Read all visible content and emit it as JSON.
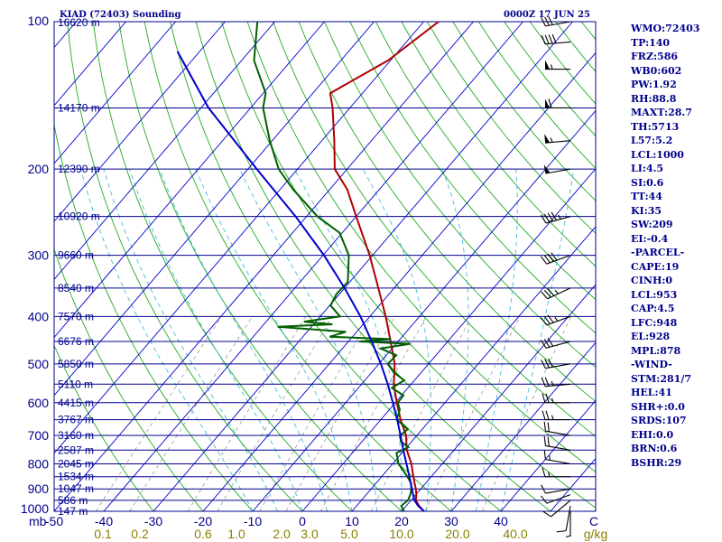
{
  "header": {
    "title": "KIAD (72403) Sounding",
    "valid_time": "0000Z 17 JUN 25"
  },
  "indices": [
    "WMO:72403",
    "TP:140",
    "FRZ:586",
    "WB0:602",
    "PW:1.92",
    "RH:88.8",
    "MAXT:28.7",
    "TH:5713",
    "L57:5.2",
    "LCL:1000",
    "LI:4.5",
    "SI:0.6",
    "TT:44",
    "KI:35",
    "SW:209",
    "EI:-0.4",
    "-PARCEL-",
    "CAPE:19",
    "CINH:0",
    "LCL:953",
    "CAP:4.5",
    "LFC:948",
    "EL:928",
    "MPL:878",
    "-WIND-",
    "STM:281/7",
    "HEL:41",
    "SHR+:0.0",
    "SRDS:107",
    "EHI:0.0",
    "BRN:0.6",
    "BSHR:29"
  ],
  "colors": {
    "isobar": "#00008b",
    "isotherm": "#0000cd",
    "dry_adiabat": "#22aa22",
    "moist_adiabat": "#44bbdd",
    "mixing_ratio": "#999999",
    "temperature": "#b00000",
    "dewpoint": "#006000",
    "parcel": "#0000cc",
    "wind_barb": "#000000",
    "mixing_ratio_label": "#8b8000"
  },
  "chart_data": {
    "type": "line",
    "title": "KIAD (72403) Sounding",
    "x_axis_unit": "C",
    "y_axis_unit": "mb",
    "xlim": [
      -50,
      50
    ],
    "ylim": [
      1000,
      100
    ],
    "y_scale": "log",
    "pressure_ticks": [
      "100",
      "200",
      "300",
      "400",
      "500",
      "600",
      "700",
      "800",
      "900",
      "1000"
    ],
    "temperature_ticks": [
      "-50",
      "-40",
      "-30",
      "-20",
      "-10",
      "0",
      "10",
      "20",
      "30",
      "40"
    ],
    "heights": [
      {
        "p": 100,
        "label": "16620 m"
      },
      {
        "p": 150,
        "label": "14170 m"
      },
      {
        "p": 200,
        "label": "12390 m"
      },
      {
        "p": 250,
        "label": "10920 m"
      },
      {
        "p": 300,
        "label": "9660 m"
      },
      {
        "p": 350,
        "label": "8540 m"
      },
      {
        "p": 400,
        "label": "7570 m"
      },
      {
        "p": 450,
        "label": "6676 m"
      },
      {
        "p": 500,
        "label": "5850 m"
      },
      {
        "p": 550,
        "label": "5110 m"
      },
      {
        "p": 600,
        "label": "4415 m"
      },
      {
        "p": 650,
        "label": "3767 m"
      },
      {
        "p": 700,
        "label": "3160 m"
      },
      {
        "p": 750,
        "label": "2587 m"
      },
      {
        "p": 800,
        "label": "2045 m"
      },
      {
        "p": 850,
        "label": "1534 m"
      },
      {
        "p": 900,
        "label": "1047 m"
      },
      {
        "p": 950,
        "label": "586 m"
      },
      {
        "p": 1000,
        "label": "147 m"
      }
    ],
    "mixing_ratio_labels": [
      "0.1",
      "0.2",
      "0.6",
      "1.0",
      "2.0",
      "3.0",
      "5.0",
      "10.0",
      "20.0",
      "40.0",
      "g/kg"
    ],
    "mixing_ratio_values": [
      0.1,
      0.2,
      0.6,
      1.0,
      2.0,
      3.0,
      5.0,
      10.0,
      20.0,
      40.0
    ],
    "series": [
      {
        "name": "Temperature",
        "points": [
          [
            1000,
            24.5
          ],
          [
            975,
            22.6
          ],
          [
            950,
            21.0
          ],
          [
            925,
            20.1
          ],
          [
            900,
            19.0
          ],
          [
            875,
            17.7
          ],
          [
            850,
            16.4
          ],
          [
            800,
            13.8
          ],
          [
            750,
            10.5
          ],
          [
            700,
            7.8
          ],
          [
            650,
            4.0
          ],
          [
            600,
            0.3
          ],
          [
            550,
            -3.5
          ],
          [
            500,
            -6.8
          ],
          [
            450,
            -11.5
          ],
          [
            400,
            -16.8
          ],
          [
            350,
            -23.2
          ],
          [
            300,
            -30.6
          ],
          [
            250,
            -40.0
          ],
          [
            220,
            -46.5
          ],
          [
            200,
            -52.5
          ],
          [
            175,
            -57.5
          ],
          [
            150,
            -63.5
          ],
          [
            140,
            -66.5
          ],
          [
            120,
            -60.5
          ],
          [
            100,
            -57.0
          ]
        ]
      },
      {
        "name": "Dewpoint",
        "points": [
          [
            1000,
            20.5
          ],
          [
            975,
            19.0
          ],
          [
            950,
            19.4
          ],
          [
            925,
            18.9
          ],
          [
            900,
            18.1
          ],
          [
            875,
            17.0
          ],
          [
            850,
            15.2
          ],
          [
            800,
            11.2
          ],
          [
            760,
            8.9
          ],
          [
            740,
            10.3
          ],
          [
            720,
            7.8
          ],
          [
            700,
            6.6
          ],
          [
            680,
            7.1
          ],
          [
            650,
            3.2
          ],
          [
            620,
            2.1
          ],
          [
            600,
            0.5
          ],
          [
            580,
            0.4
          ],
          [
            560,
            -3.2
          ],
          [
            540,
            -2.1
          ],
          [
            520,
            -5.6
          ],
          [
            500,
            -8.2
          ],
          [
            480,
            -8.0
          ],
          [
            465,
            -12.3
          ],
          [
            455,
            -7.2
          ],
          [
            450,
            -17.8
          ],
          [
            445,
            -11.8
          ],
          [
            440,
            -24.6
          ],
          [
            430,
            -22.2
          ],
          [
            420,
            -36.8
          ],
          [
            415,
            -26.2
          ],
          [
            410,
            -32.4
          ],
          [
            400,
            -26.0
          ],
          [
            380,
            -29.8
          ],
          [
            360,
            -30.6
          ],
          [
            340,
            -30.4
          ],
          [
            300,
            -34.8
          ],
          [
            270,
            -40.5
          ],
          [
            250,
            -47.8
          ],
          [
            220,
            -57.4
          ],
          [
            200,
            -63.8
          ],
          [
            175,
            -70.5
          ],
          [
            150,
            -77.5
          ],
          [
            140,
            -79.5
          ],
          [
            120,
            -87.5
          ],
          [
            100,
            -93.5
          ]
        ]
      },
      {
        "name": "Parcel",
        "points": [
          [
            1000,
            24.5
          ],
          [
            975,
            22.4
          ],
          [
            950,
            20.7
          ],
          [
            900,
            18.2
          ],
          [
            850,
            15.6
          ],
          [
            800,
            12.8
          ],
          [
            750,
            9.8
          ],
          [
            700,
            6.7
          ],
          [
            650,
            3.3
          ],
          [
            600,
            -0.5
          ],
          [
            550,
            -4.7
          ],
          [
            500,
            -9.6
          ],
          [
            450,
            -15.3
          ],
          [
            400,
            -21.9
          ],
          [
            350,
            -30.0
          ],
          [
            300,
            -39.8
          ],
          [
            250,
            -52.2
          ],
          [
            200,
            -68.2
          ],
          [
            150,
            -88.5
          ],
          [
            115,
            -104.5
          ]
        ]
      }
    ],
    "wind_barbs": [
      {
        "p": 1000,
        "dir": 180,
        "kt": 5
      },
      {
        "p": 975,
        "dir": 190,
        "kt": 10
      },
      {
        "p": 950,
        "dir": 230,
        "kt": 10
      },
      {
        "p": 925,
        "dir": 250,
        "kt": 10
      },
      {
        "p": 900,
        "dir": 260,
        "kt": 10
      },
      {
        "p": 850,
        "dir": 270,
        "kt": 15
      },
      {
        "p": 800,
        "dir": 280,
        "kt": 15
      },
      {
        "p": 750,
        "dir": 280,
        "kt": 20
      },
      {
        "p": 700,
        "dir": 280,
        "kt": 20
      },
      {
        "p": 650,
        "dir": 270,
        "kt": 25
      },
      {
        "p": 600,
        "dir": 270,
        "kt": 25
      },
      {
        "p": 550,
        "dir": 265,
        "kt": 25
      },
      {
        "p": 500,
        "dir": 260,
        "kt": 30
      },
      {
        "p": 450,
        "dir": 255,
        "kt": 30
      },
      {
        "p": 400,
        "dir": 250,
        "kt": 35
      },
      {
        "p": 350,
        "dir": 245,
        "kt": 35
      },
      {
        "p": 300,
        "dir": 250,
        "kt": 40
      },
      {
        "p": 250,
        "dir": 255,
        "kt": 45
      },
      {
        "p": 200,
        "dir": 260,
        "kt": 50
      },
      {
        "p": 175,
        "dir": 265,
        "kt": 55
      },
      {
        "p": 150,
        "dir": 270,
        "kt": 60
      },
      {
        "p": 125,
        "dir": 270,
        "kt": 55
      },
      {
        "p": 110,
        "dir": 265,
        "kt": 40
      },
      {
        "p": 100,
        "dir": 260,
        "kt": 30
      }
    ],
    "legend": "none",
    "grid": true
  }
}
